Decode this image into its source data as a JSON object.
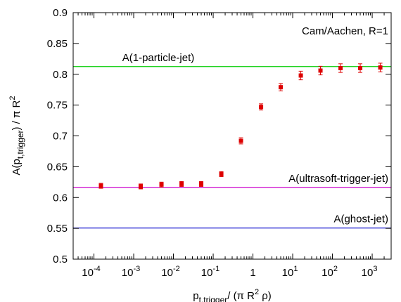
{
  "chart_data": {
    "type": "scatter",
    "x_scale": "log",
    "xlim": [
      3e-05,
      3000
    ],
    "ylim": [
      0.5,
      0.9
    ],
    "grid": false,
    "legend": "none",
    "xlabel": "p_{t,trigger} / (π R^2 ρ)",
    "ylabel": "A(p_{t,trigger}) / π R^2",
    "x_ticks": [
      0.0001,
      0.001,
      0.01,
      0.1,
      1,
      10,
      100,
      1000
    ],
    "x_tick_labels": [
      {
        "base": "10",
        "exp": "-4"
      },
      {
        "base": "10",
        "exp": "-3"
      },
      {
        "base": "10",
        "exp": "-2"
      },
      {
        "base": "10",
        "exp": "-1"
      },
      {
        "base": "1",
        "exp": ""
      },
      {
        "base": "10",
        "exp": "1"
      },
      {
        "base": "10",
        "exp": "2"
      },
      {
        "base": "10",
        "exp": "3"
      }
    ],
    "y_ticks": [
      0.5,
      0.55,
      0.6,
      0.65,
      0.7,
      0.75,
      0.8,
      0.85,
      0.9
    ],
    "y_tick_labels": [
      "0.5",
      "0.55",
      "0.6",
      "0.65",
      "0.7",
      "0.75",
      "0.8",
      "0.85",
      "0.9"
    ],
    "corner_label": "Cam/Aachen, R=1",
    "reference_lines": [
      {
        "label": "A(1-particle-jet)",
        "y": 0.8125,
        "color": "#00cc00"
      },
      {
        "label": "A(ultrasoft-trigger-jet)",
        "y": 0.6165,
        "color": "#cc00cc"
      },
      {
        "label": "A(ghost-jet)",
        "y": 0.5505,
        "color": "#0000cc"
      }
    ],
    "points_color": "#dd0000",
    "points": [
      {
        "x": 0.00015,
        "y": 0.619,
        "err": 0.004
      },
      {
        "x": 0.0015,
        "y": 0.618,
        "err": 0.004
      },
      {
        "x": 0.005,
        "y": 0.621,
        "err": 0.004
      },
      {
        "x": 0.016,
        "y": 0.622,
        "err": 0.004
      },
      {
        "x": 0.05,
        "y": 0.622,
        "err": 0.004
      },
      {
        "x": 0.16,
        "y": 0.638,
        "err": 0.004
      },
      {
        "x": 0.5,
        "y": 0.692,
        "err": 0.005
      },
      {
        "x": 1.6,
        "y": 0.747,
        "err": 0.005
      },
      {
        "x": 5,
        "y": 0.779,
        "err": 0.006
      },
      {
        "x": 16,
        "y": 0.798,
        "err": 0.007
      },
      {
        "x": 50,
        "y": 0.806,
        "err": 0.007
      },
      {
        "x": 160,
        "y": 0.81,
        "err": 0.007
      },
      {
        "x": 500,
        "y": 0.81,
        "err": 0.007
      },
      {
        "x": 1600,
        "y": 0.811,
        "err": 0.007
      }
    ]
  }
}
